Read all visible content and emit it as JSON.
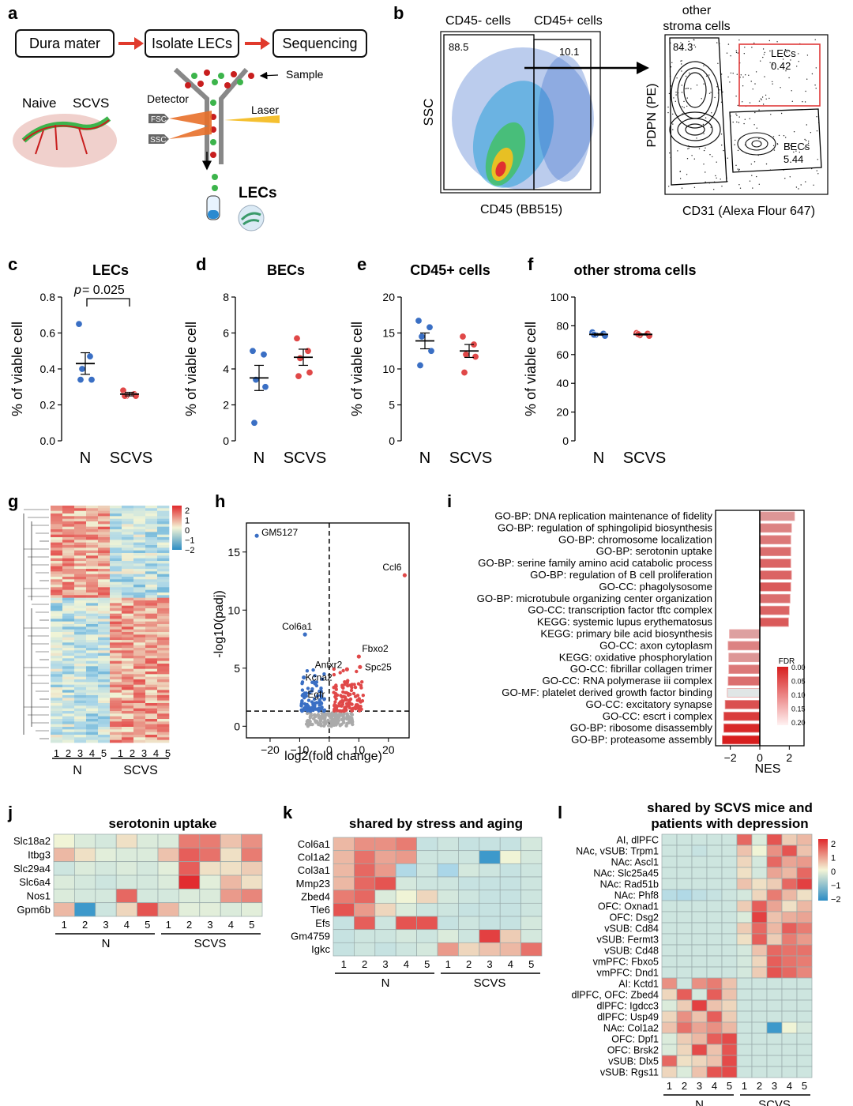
{
  "panels": {
    "a": {
      "letter": "a",
      "steps": [
        "Dura mater",
        "Isolate LECs",
        "Sequencing"
      ],
      "naive": "Naive",
      "scvs": "SCVS",
      "detector": "Detector",
      "fsc": "FSC",
      "ssc": "SSC",
      "laser": "Laser",
      "sample": "Sample",
      "lecs": "LECs"
    },
    "b": {
      "letter": "b",
      "cd45neg": "CD45- cells",
      "cd45pos": "CD45+ cells",
      "gate_neg": "88.5",
      "gate_pos": "10.1",
      "yaxis1": "SSC",
      "xaxis1": "CD45 (BB515)",
      "other_title": [
        "other",
        "stroma cells"
      ],
      "gate_other": "84.3",
      "lec_label": "LECs",
      "lec_value": "0.42",
      "bec_label": "BECs",
      "bec_value": "5.44",
      "yaxis2": "PDPN (PE)",
      "xaxis2": "CD31 (Alexa Flour 647)"
    },
    "c": {
      "letter": "c",
      "title": "LECs",
      "pvalue_prefix": "p",
      "pvalue_rest": " = 0.025"
    },
    "d": {
      "letter": "d",
      "title": "BECs"
    },
    "e": {
      "letter": "e",
      "title": "CD45+ cells"
    },
    "f": {
      "letter": "f",
      "title": "other stroma cells"
    },
    "g": {
      "letter": "g",
      "samples": [
        "1",
        "2",
        "3",
        "4",
        "5",
        "1",
        "2",
        "3",
        "4",
        "5"
      ],
      "group_n": "N",
      "group_scvs": "SCVS",
      "scale": [
        "2",
        "1",
        "0",
        "−1",
        "−2"
      ]
    },
    "h": {
      "letter": "h",
      "xlabel": "log2(fold change)",
      "ylabel": "-log10(padj)"
    },
    "i": {
      "letter": "i",
      "xlabel": "NES",
      "legend_title": "FDR",
      "legend_ticks": [
        "0.00",
        "0.05",
        "0.10",
        "0.15",
        "0.20"
      ]
    },
    "j": {
      "letter": "j",
      "title": "serotonin uptake"
    },
    "k": {
      "letter": "k",
      "title": "shared by stress and aging"
    },
    "l": {
      "letter": "l",
      "title": [
        "shared by SCVS mice and",
        "patients with depression"
      ],
      "scale": [
        "2",
        "1",
        "0",
        "−1",
        "−2"
      ]
    },
    "ylabel_viable": "% of viable cell",
    "groups": [
      "N",
      "SCVS"
    ]
  },
  "chart_data": [
    {
      "panel": "c",
      "type": "scatter",
      "title": "LECs",
      "ylabel": "% of viable cell",
      "categories": [
        "N",
        "SCVS"
      ],
      "ylim": [
        0,
        0.8
      ],
      "yticks": [
        "0.0",
        "0.2",
        "0.4",
        "0.6",
        "0.8"
      ],
      "series": [
        {
          "values": [
            0.65,
            0.47,
            0.4,
            0.34,
            0.34
          ],
          "mean": 0.43,
          "sem": 0.06,
          "color": "#3a6fc4"
        },
        {
          "values": [
            0.28,
            0.26,
            0.25,
            0.25,
            0.25
          ],
          "mean": 0.26,
          "sem": 0.01,
          "color": "#e04848"
        }
      ]
    },
    {
      "panel": "d",
      "type": "scatter",
      "title": "BECs",
      "ylabel": "% of viable cell",
      "categories": [
        "N",
        "SCVS"
      ],
      "ylim": [
        0,
        8
      ],
      "yticks": [
        "0",
        "2",
        "4",
        "6",
        "8"
      ],
      "series": [
        {
          "values": [
            5.0,
            4.8,
            3.4,
            3.0,
            1.0
          ],
          "mean": 3.5,
          "sem": 0.7,
          "color": "#3a6fc4"
        },
        {
          "values": [
            5.7,
            5.0,
            4.6,
            3.8,
            3.6
          ],
          "mean": 4.65,
          "sem": 0.45,
          "color": "#e04848"
        }
      ]
    },
    {
      "panel": "e",
      "type": "scatter",
      "title": "CD45+ cells",
      "ylabel": "% of viable cell",
      "categories": [
        "N",
        "SCVS"
      ],
      "ylim": [
        0,
        20
      ],
      "yticks": [
        "0",
        "5",
        "10",
        "15",
        "20"
      ],
      "series": [
        {
          "values": [
            16.7,
            15.8,
            14.5,
            12.5,
            10.5
          ],
          "mean": 13.9,
          "sem": 1.1,
          "color": "#3a6fc4"
        },
        {
          "values": [
            14.5,
            13.4,
            12.0,
            11.7,
            9.5
          ],
          "mean": 12.5,
          "sem": 0.9,
          "color": "#e04848"
        }
      ]
    },
    {
      "panel": "f",
      "type": "scatter",
      "title": "other stroma cells",
      "ylabel": "% of viable cell",
      "categories": [
        "N",
        "SCVS"
      ],
      "ylim": [
        0,
        100
      ],
      "yticks": [
        "0",
        "20",
        "40",
        "60",
        "80",
        "100"
      ],
      "series": [
        {
          "values": [
            75.5,
            74.5,
            73.6,
            73.0,
            73.8
          ],
          "mean": 74.0,
          "sem": 0.5,
          "color": "#3a6fc4"
        },
        {
          "values": [
            75.0,
            74.5,
            73.4,
            73.0,
            74.2
          ],
          "mean": 74.0,
          "sem": 0.4,
          "color": "#e04848"
        }
      ]
    },
    {
      "panel": "h",
      "type": "scatter",
      "title": "",
      "xlabel": "log2(fold change)",
      "ylabel": "-log10(padj)",
      "xlim": [
        -28,
        27
      ],
      "ylim": [
        -1,
        17.5
      ],
      "xticks": [
        -20,
        -10,
        0,
        10,
        20
      ],
      "yticks": [
        0,
        5,
        10,
        15
      ],
      "labeled_points": [
        {
          "label": "GM5127",
          "x": -24.5,
          "y": 16.4,
          "color": "#3a6fc4"
        },
        {
          "label": "Ccl6",
          "x": 25.5,
          "y": 13.0,
          "color": "#e04848"
        },
        {
          "label": "Col6a1",
          "x": -8.2,
          "y": 7.9,
          "color": "#3a6fc4"
        },
        {
          "label": "Fbxo2",
          "x": 10.0,
          "y": 6.0,
          "color": "#e04848"
        },
        {
          "label": "Spc25",
          "x": 10.4,
          "y": 5.1,
          "color": "#e04848"
        },
        {
          "label": "Antxr2",
          "x": 6.0,
          "y": 4.9,
          "color": "#e04848"
        },
        {
          "label": "Kcna2",
          "x": -8.6,
          "y": 4.2,
          "color": "#3a6fc4"
        },
        {
          "label": "Egfr",
          "x": -2.8,
          "y": 3.0,
          "color": "#3a6fc4"
        }
      ]
    },
    {
      "panel": "i",
      "type": "bar",
      "xlabel": "NES",
      "xlim": [
        -3,
        3
      ],
      "xticks": [
        -2,
        0,
        2
      ],
      "categories": [
        "GO-BP: DNA replication maintenance of fidelity",
        "GO-BP: regulation of sphingolipid biosynthesis",
        "GO-BP: chromosome localization",
        "GO-BP: serotonin uptake",
        "GO-BP: serine family amino acid catabolic process",
        "GO-BP: regulation of B cell proliferation",
        "GO-CC: phagolysosome",
        "GO-BP: microtubule organizing center organization",
        "GO-CC: transcription factor tftc complex",
        "KEGG: systemic lupus erythematosus",
        "KEGG: primary bile acid biosynthesis",
        "GO-CC: axon cytoplasm",
        "KEGG: oxidative phosphorylation",
        "GO-CC: fibrillar collagen trimer",
        "GO-CC: RNA polymerase iii complex",
        "GO-MF: platelet derived growth factor binding",
        "GO-CC: excitatory synapse",
        "GO-CC: escrt i complex",
        "GO-BP: ribosome disassembly",
        "GO-BP: proteasome assembly"
      ],
      "values": [
        2.35,
        2.15,
        2.1,
        2.1,
        2.1,
        2.15,
        2.1,
        2.05,
        2.0,
        1.95,
        -2.05,
        -2.15,
        -2.1,
        -2.1,
        -2.15,
        -2.2,
        -2.35,
        -2.45,
        -2.45,
        -2.55
      ],
      "fdr": [
        0.12,
        0.1,
        0.09,
        0.08,
        0.07,
        0.07,
        0.06,
        0.08,
        0.07,
        0.06,
        0.13,
        0.1,
        0.12,
        0.09,
        0.08,
        0.2,
        0.05,
        0.03,
        0.01,
        0.0
      ]
    },
    {
      "panel": "g",
      "type": "heatmap",
      "rows": 90,
      "columns": [
        "1",
        "2",
        "3",
        "4",
        "5",
        "1",
        "2",
        "3",
        "4",
        "5"
      ],
      "up_rows_in_N": 35,
      "up_rows_in_SCVS": 55,
      "scale": [
        -2,
        2
      ]
    },
    {
      "panel": "j",
      "type": "heatmap",
      "title": "serotonin uptake",
      "rows": [
        "Slc18a2",
        "Itbg3",
        "Slc29a4",
        "Slc6a4",
        "Nos1",
        "Gpm6b"
      ],
      "columns": [
        "1",
        "2",
        "3",
        "4",
        "5",
        "1",
        "2",
        "3",
        "4",
        "5"
      ],
      "values": [
        [
          0.0,
          -0.3,
          -0.4,
          0.2,
          -0.3,
          -0.3,
          1.2,
          1.2,
          0.5,
          1.0
        ],
        [
          0.6,
          0.2,
          -0.2,
          -0.3,
          -0.3,
          0.5,
          1.5,
          1.3,
          0.2,
          1.2
        ],
        [
          -0.5,
          -0.3,
          -0.4,
          -0.3,
          -0.4,
          -0.2,
          1.5,
          0.2,
          0.2,
          0.4
        ],
        [
          -0.3,
          -0.4,
          -0.5,
          -0.4,
          -0.4,
          -0.3,
          2.0,
          -0.2,
          0.6,
          0.2
        ],
        [
          -0.3,
          -0.4,
          -0.4,
          1.4,
          -0.4,
          -0.4,
          -0.3,
          -0.3,
          0.9,
          1.1
        ],
        [
          0.6,
          -1.8,
          -0.5,
          0.3,
          1.6,
          0.6,
          -0.2,
          -0.2,
          -0.3,
          -0.2
        ]
      ]
    },
    {
      "panel": "k",
      "type": "heatmap",
      "title": "shared by stress and aging",
      "rows": [
        "Col6a1",
        "Col1a2",
        "Col3a1",
        "Mmp23",
        "Zbed4",
        "Tle6",
        "Efs",
        "Gm4759",
        "Igkc"
      ],
      "columns": [
        "1",
        "2",
        "3",
        "4",
        "5",
        "1",
        "2",
        "3",
        "4",
        "5"
      ],
      "values": [
        [
          0.6,
          1.0,
          1.0,
          1.2,
          -0.6,
          -0.5,
          -0.6,
          -0.6,
          -0.6,
          -0.4
        ],
        [
          0.6,
          1.3,
          0.8,
          0.9,
          -0.5,
          -0.5,
          -0.5,
          -1.8,
          0.0,
          -0.4
        ],
        [
          0.6,
          1.4,
          0.9,
          -0.9,
          -0.5,
          -1.0,
          -0.4,
          -0.5,
          -0.6,
          -0.5
        ],
        [
          0.6,
          1.4,
          1.6,
          -0.4,
          -0.5,
          -0.5,
          -0.6,
          -0.6,
          -0.6,
          -0.5
        ],
        [
          1.2,
          1.4,
          -0.3,
          0.0,
          0.3,
          -0.4,
          -0.5,
          -0.6,
          -0.6,
          -0.5
        ],
        [
          1.6,
          0.9,
          0.3,
          -0.3,
          -0.5,
          -0.5,
          -0.6,
          -0.6,
          -0.6,
          -0.5
        ],
        [
          -0.6,
          1.5,
          -0.5,
          1.6,
          1.6,
          -0.6,
          -0.5,
          -0.6,
          -0.6,
          -0.4
        ],
        [
          -0.6,
          -0.5,
          -0.5,
          -0.4,
          -0.5,
          -0.3,
          -0.5,
          1.8,
          0.4,
          -0.4
        ],
        [
          -0.6,
          -0.5,
          -0.6,
          -0.5,
          -0.4,
          0.9,
          0.3,
          0.5,
          0.6,
          1.3
        ]
      ]
    },
    {
      "panel": "l",
      "type": "heatmap",
      "rows": [
        "AI, dlPFC",
        "NAc, vSUB: Trpm1",
        "NAc: Ascl1",
        "NAc: Slc25a45",
        "NAc: Rad51b",
        "NAc: Phf8",
        "OFC: Oxnad1",
        "OFC: Dsg2",
        "vSUB: Cd84",
        "vSUB: Fermt3",
        "vSUB: Cd48",
        "vmPFC: Fbxo5",
        "vmPFC: Dnd1",
        "AI: Kctd1",
        "dlPFC, OFC: Zbed4",
        "dlPFC: Igdcc3",
        "dlPFC: Usp49",
        "NAc: Col1a2",
        "OFC: Dpf1",
        "OFC: Brsk2",
        "vSUB: Dlx5",
        "vSUB: Rgs11"
      ],
      "columns": [
        "1",
        "2",
        "3",
        "4",
        "5",
        "1",
        "2",
        "3",
        "4",
        "5"
      ],
      "values": [
        [
          -0.5,
          -0.5,
          -0.5,
          -0.5,
          -0.5,
          1.4,
          -0.3,
          1.6,
          0.4,
          0.6
        ],
        [
          -0.5,
          -0.5,
          -0.6,
          -0.5,
          -0.5,
          0.5,
          0.0,
          1.0,
          1.6,
          0.5
        ],
        [
          -0.5,
          -0.5,
          -0.5,
          -0.5,
          -0.5,
          0.3,
          -0.4,
          1.4,
          0.8,
          0.9
        ],
        [
          -0.5,
          -0.5,
          -0.5,
          -0.5,
          -0.5,
          0.2,
          -0.4,
          0.8,
          0.6,
          1.4
        ],
        [
          -0.5,
          -0.5,
          -0.5,
          -0.5,
          -0.5,
          0.5,
          0.2,
          0.4,
          1.4,
          1.8
        ],
        [
          -0.8,
          -0.9,
          -0.7,
          -0.6,
          -0.5,
          -0.4,
          0.3,
          1.2,
          0.6,
          0.2
        ],
        [
          -0.5,
          -0.5,
          -0.5,
          -0.5,
          -0.5,
          0.4,
          1.5,
          0.8,
          0.2,
          0.6
        ],
        [
          -0.5,
          -0.5,
          -0.5,
          -0.5,
          -0.5,
          -0.3,
          1.8,
          0.5,
          0.7,
          0.8
        ],
        [
          -0.5,
          -0.5,
          -0.5,
          -0.5,
          -0.5,
          0.4,
          1.4,
          0.6,
          1.5,
          1.2
        ],
        [
          -0.5,
          -0.5,
          -0.5,
          -0.5,
          -0.5,
          0.2,
          1.5,
          0.4,
          1.2,
          0.9
        ],
        [
          -0.5,
          -0.5,
          -0.5,
          -0.5,
          -0.5,
          -0.4,
          0.5,
          1.4,
          1.3,
          1.3
        ],
        [
          -0.5,
          -0.5,
          -0.5,
          -0.5,
          -0.5,
          -0.4,
          0.3,
          1.5,
          1.3,
          1.2
        ],
        [
          -0.5,
          -0.5,
          -0.5,
          -0.5,
          -0.5,
          -0.4,
          0.4,
          1.6,
          1.4,
          1.1
        ],
        [
          1.0,
          -0.5,
          1.0,
          1.2,
          0.5,
          -0.5,
          -0.5,
          -0.5,
          -0.5,
          -0.5
        ],
        [
          0.3,
          1.5,
          -0.4,
          1.5,
          0.5,
          -0.5,
          -0.5,
          -0.5,
          -0.5,
          -0.5
        ],
        [
          -0.3,
          0.4,
          1.8,
          0.5,
          0.3,
          -0.5,
          -0.5,
          -0.5,
          -0.5,
          -0.5
        ],
        [
          0.3,
          1.0,
          0.5,
          1.5,
          0.4,
          -0.5,
          -0.5,
          -0.5,
          -0.5,
          -0.5
        ],
        [
          0.5,
          1.3,
          0.8,
          1.0,
          0.6,
          -0.5,
          -0.5,
          -1.8,
          0.0,
          -0.4
        ],
        [
          -0.3,
          0.4,
          0.6,
          1.5,
          1.7,
          -0.5,
          -0.5,
          -0.5,
          -0.5,
          -0.5
        ],
        [
          -0.3,
          0.3,
          1.7,
          0.5,
          1.6,
          -0.5,
          -0.5,
          -0.5,
          -0.5,
          -0.5
        ],
        [
          1.4,
          0.2,
          0.3,
          0.5,
          1.7,
          -0.5,
          -0.5,
          -0.5,
          -0.5,
          -0.5
        ],
        [
          0.3,
          -0.3,
          0.5,
          1.6,
          1.7,
          -0.5,
          -0.5,
          -0.5,
          -0.5,
          -0.5
        ]
      ]
    }
  ]
}
